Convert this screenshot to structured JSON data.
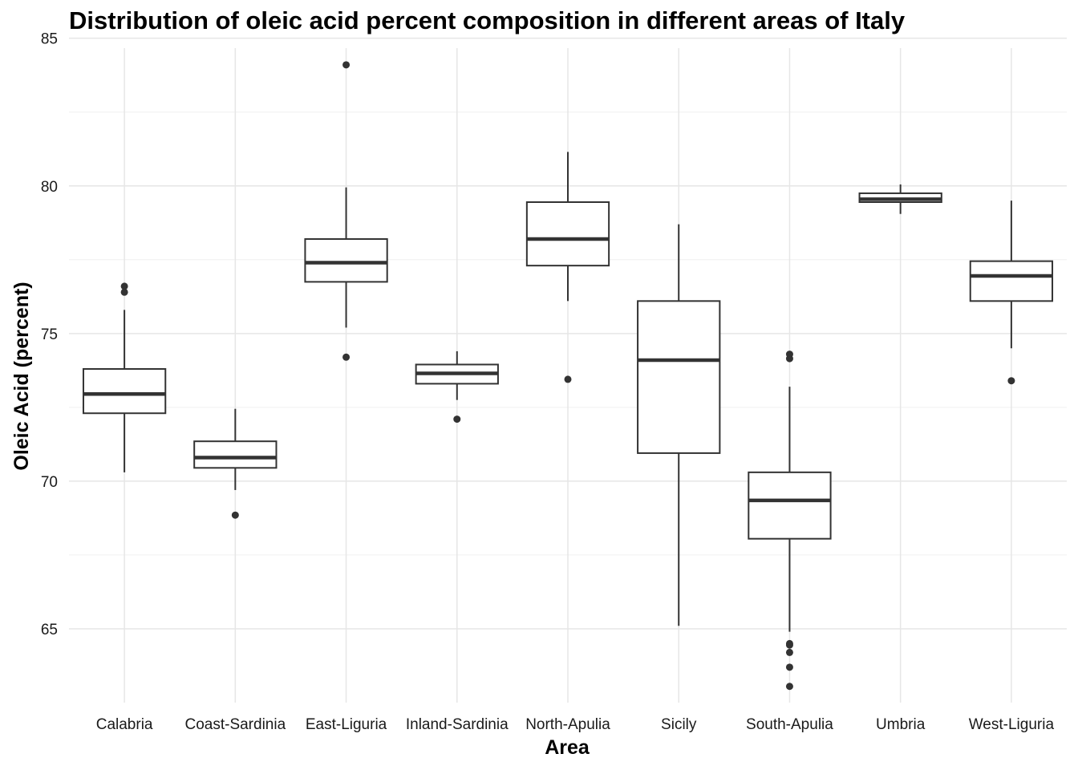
{
  "chart_data": {
    "type": "box",
    "title": "Distribution of oleic acid percent composition in different areas of Italy",
    "xlabel": "Area",
    "ylabel": "Oleic Acid (percent)",
    "ylim": [
      62.5,
      85.1
    ],
    "yticks": [
      65,
      70,
      75,
      80,
      85
    ],
    "grid": true,
    "categories": [
      "Calabria",
      "Coast-Sardinia",
      "East-Liguria",
      "Inland-Sardinia",
      "North-Apulia",
      "Sicily",
      "South-Apulia",
      "Umbria",
      "West-Liguria"
    ],
    "boxes": [
      {
        "category": "Calabria",
        "whisker_low": 70.3,
        "q1": 72.3,
        "median": 72.95,
        "q3": 73.8,
        "whisker_high": 75.8,
        "outliers": [
          76.4,
          76.6
        ]
      },
      {
        "category": "Coast-Sardinia",
        "whisker_low": 69.7,
        "q1": 70.45,
        "median": 70.8,
        "q3": 71.35,
        "whisker_high": 72.45,
        "outliers": [
          68.85
        ]
      },
      {
        "category": "East-Liguria",
        "whisker_low": 75.2,
        "q1": 76.75,
        "median": 77.4,
        "q3": 78.2,
        "whisker_high": 79.95,
        "outliers": [
          84.1,
          74.2
        ]
      },
      {
        "category": "Inland-Sardinia",
        "whisker_low": 72.75,
        "q1": 73.3,
        "median": 73.65,
        "q3": 73.95,
        "whisker_high": 74.4,
        "outliers": [
          72.1
        ]
      },
      {
        "category": "North-Apulia",
        "whisker_low": 76.1,
        "q1": 77.3,
        "median": 78.2,
        "q3": 79.45,
        "whisker_high": 81.15,
        "outliers": [
          73.45
        ]
      },
      {
        "category": "Sicily",
        "whisker_low": 65.1,
        "q1": 70.95,
        "median": 74.1,
        "q3": 76.1,
        "whisker_high": 78.7,
        "outliers": []
      },
      {
        "category": "South-Apulia",
        "whisker_low": 64.9,
        "q1": 68.05,
        "median": 69.35,
        "q3": 70.3,
        "whisker_high": 73.2,
        "outliers": [
          74.15,
          74.3,
          64.5,
          64.45,
          64.2,
          63.7,
          63.05
        ]
      },
      {
        "category": "Umbria",
        "whisker_low": 79.05,
        "q1": 79.45,
        "median": 79.55,
        "q3": 79.75,
        "whisker_high": 80.05,
        "outliers": []
      },
      {
        "category": "West-Liguria",
        "whisker_low": 74.5,
        "q1": 76.1,
        "median": 76.95,
        "q3": 77.45,
        "whisker_high": 79.5,
        "outliers": [
          73.4
        ]
      }
    ]
  }
}
